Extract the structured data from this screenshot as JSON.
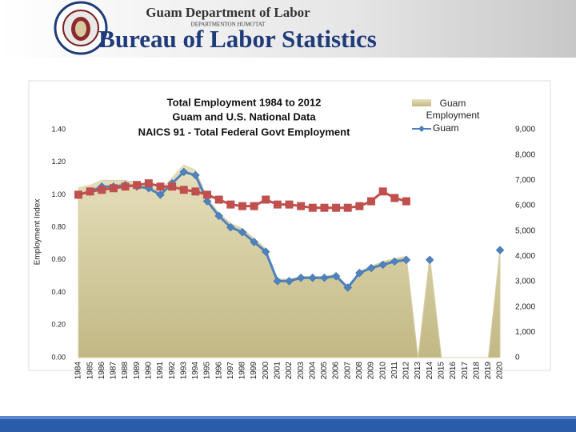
{
  "header": {
    "organization": "Guam Department of Labor",
    "organization_local": "DEPARTMENTON HUMO'TAT",
    "bureau": "Bureau of Labor Statistics"
  },
  "chart_data": {
    "type": "line",
    "title": [
      "Total Employment 1984 to 2012",
      "Guam and U.S. National Data",
      "NAICS 91 - Total Federal Govt Employment"
    ],
    "ylabel": "Employment Index",
    "categories": [
      "1984",
      "1985",
      "1986",
      "1987",
      "1988",
      "1989",
      "1990",
      "1991",
      "1992",
      "1993",
      "1994",
      "1995",
      "1996",
      "1997",
      "1998",
      "1999",
      "2000",
      "2001",
      "2002",
      "2003",
      "2004",
      "2005",
      "2006",
      "2007",
      "2008",
      "2009",
      "2010",
      "2011",
      "2012",
      "2013",
      "2014",
      "2015",
      "2016",
      "2017",
      "2018",
      "2019",
      "2020"
    ],
    "ylim": [
      0,
      1.4
    ],
    "yticks": [
      {
        "value": 0,
        "label": "0.00"
      },
      {
        "value": 0.2,
        "label": "0.20"
      },
      {
        "value": 0.4,
        "label": "0.40"
      },
      {
        "value": 0.6,
        "label": "0.60"
      },
      {
        "value": 0.8,
        "label": "0.80"
      },
      {
        "value": 1.0,
        "label": "1.00"
      },
      {
        "value": 1.2,
        "label": "1.20"
      },
      {
        "value": 1.4,
        "label": "1.40"
      }
    ],
    "y2lim": [
      0,
      9000
    ],
    "y2ticks": [
      0,
      {
        "value": 1000,
        "label": "1,000"
      },
      {
        "value": 2000,
        "label": "2,000"
      },
      {
        "value": 3000,
        "label": "3,000"
      },
      {
        "value": 4000,
        "label": "4,000"
      },
      {
        "value": 5000,
        "label": "5,000"
      },
      {
        "value": 6000,
        "label": "6,000"
      },
      {
        "value": 7000,
        "label": "7,000"
      },
      {
        "value": 8000,
        "label": "8,000"
      },
      {
        "value": 9000,
        "label": "9,000"
      }
    ],
    "legend": "top-right",
    "series": [
      {
        "name": "Guam Employment",
        "type": "area",
        "axis": "y2",
        "color": "#c8bf8c",
        "values": [
          6700,
          6800,
          7000,
          7000,
          7000,
          6900,
          6800,
          6600,
          7100,
          7600,
          7400,
          6300,
          5700,
          5300,
          5100,
          4700,
          4300,
          3100,
          3100,
          3200,
          3200,
          3200,
          3300,
          2800,
          3400,
          3600,
          3800,
          3900,
          4000,
          0,
          4000,
          0,
          0,
          0,
          0,
          0,
          4300
        ]
      },
      {
        "name": "Guam",
        "type": "line",
        "marker": "diamond",
        "color": "#4f81bd",
        "values": [
          1.0,
          1.02,
          1.05,
          1.05,
          1.06,
          1.05,
          1.04,
          1.0,
          1.07,
          1.14,
          1.12,
          0.96,
          0.87,
          0.8,
          0.77,
          0.71,
          0.65,
          0.47,
          0.47,
          0.49,
          0.49,
          0.49,
          0.5,
          0.43,
          0.52,
          0.55,
          0.57,
          0.59,
          0.6,
          null,
          0.6,
          null,
          null,
          null,
          null,
          null,
          0.66
        ]
      },
      {
        "type": "line",
        "marker": "square",
        "color": "#c0504d",
        "values": [
          1.0,
          1.02,
          1.03,
          1.04,
          1.05,
          1.06,
          1.07,
          1.05,
          1.05,
          1.03,
          1.02,
          1.0,
          0.97,
          0.94,
          0.93,
          0.93,
          0.97,
          0.94,
          0.94,
          0.93,
          0.92,
          0.92,
          0.92,
          0.92,
          0.93,
          0.96,
          1.02,
          0.98,
          0.96,
          null,
          null,
          null,
          null,
          null,
          null,
          null,
          null
        ]
      }
    ]
  }
}
